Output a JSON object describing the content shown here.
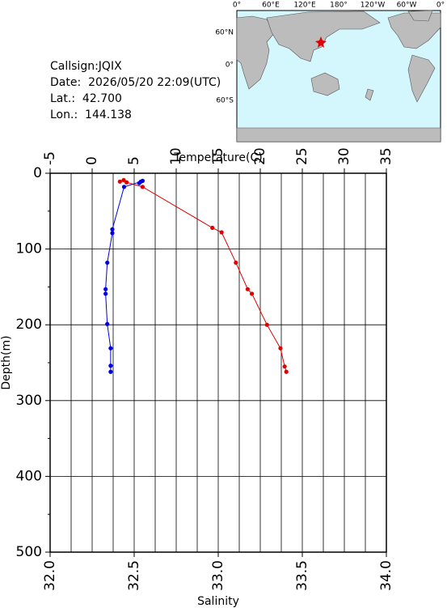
{
  "info": {
    "callsign": "Callsign:JQIX",
    "date": "Date:  2026/05/20 22:09(UTC)",
    "lat": "Lat.:  42.700",
    "lon": "Lon.:  144.138"
  },
  "map": {
    "top_labels": [
      "0°",
      "60°E",
      "120°E",
      "180°",
      "120°W",
      "60°W",
      "0°"
    ],
    "left_labels": [
      "60°N",
      "0°",
      "60°S"
    ]
  },
  "chart_data": {
    "type": "line",
    "xlabel": "Temperature(C)",
    "x2label": "Salinity",
    "ylabel": "Depth(m)",
    "xlim": [
      -5,
      35
    ],
    "xticks": [
      -5,
      0,
      5,
      10,
      15,
      20,
      25,
      30,
      35
    ],
    "x2lim": [
      32,
      34
    ],
    "x2ticks": [
      {
        "value": 32,
        "label": "32.0"
      },
      {
        "value": 32.5,
        "label": "32.5"
      },
      {
        "value": 33,
        "label": "33.0"
      },
      {
        "value": 33.5,
        "label": "33.5"
      },
      {
        "value": 34,
        "label": "34.0"
      }
    ],
    "ylim": [
      0,
      500
    ],
    "yticks": [
      0,
      100,
      200,
      300,
      400,
      500
    ],
    "y_inverted": true,
    "grid": true,
    "series": [
      {
        "axis": "x",
        "color": "#e00000",
        "x": [
          3.3,
          3.75,
          4.1,
          6.0,
          14.3,
          15.4,
          17.1,
          18.5,
          19.0,
          20.8,
          22.4,
          22.9,
          23.1
        ],
        "y": [
          11,
          9,
          12,
          18,
          72,
          78,
          118,
          153,
          159,
          200,
          231,
          255,
          262
        ]
      },
      {
        "axis": "x2",
        "color": "#0000e0",
        "x": [
          32.53,
          32.55,
          32.54,
          32.44,
          32.37,
          32.37,
          32.34,
          32.33,
          32.33,
          32.34,
          32.36,
          32.36,
          32.36
        ],
        "y": [
          13,
          10,
          11,
          18,
          74,
          79,
          118,
          153,
          159,
          199,
          231,
          254,
          262
        ]
      }
    ]
  }
}
